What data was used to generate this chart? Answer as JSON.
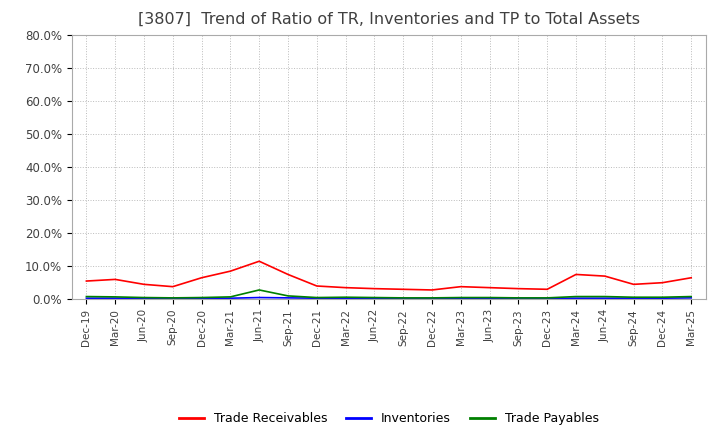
{
  "title": "[3807]  Trend of Ratio of TR, Inventories and TP to Total Assets",
  "title_color": "#404040",
  "title_fontsize": 11.5,
  "ylim": [
    0.0,
    80.0
  ],
  "yticks": [
    0.0,
    10.0,
    20.0,
    30.0,
    40.0,
    50.0,
    60.0,
    70.0,
    80.0
  ],
  "ytick_labels": [
    "0.0%",
    "10.0%",
    "20.0%",
    "30.0%",
    "40.0%",
    "50.0%",
    "60.0%",
    "70.0%",
    "80.0%"
  ],
  "x_labels": [
    "Dec-19",
    "Mar-20",
    "Jun-20",
    "Sep-20",
    "Dec-20",
    "Mar-21",
    "Jun-21",
    "Sep-21",
    "Dec-21",
    "Mar-22",
    "Jun-22",
    "Sep-22",
    "Dec-22",
    "Mar-23",
    "Jun-23",
    "Sep-23",
    "Dec-23",
    "Mar-24",
    "Jun-24",
    "Sep-24",
    "Dec-24",
    "Mar-25"
  ],
  "trade_receivables": [
    5.5,
    6.0,
    4.5,
    3.8,
    6.5,
    8.5,
    11.5,
    7.5,
    4.0,
    3.5,
    3.2,
    3.0,
    2.8,
    3.8,
    3.5,
    3.2,
    3.0,
    7.5,
    7.0,
    4.5,
    5.0,
    6.5
  ],
  "inventories": [
    0.3,
    0.3,
    0.2,
    0.2,
    0.2,
    0.3,
    0.5,
    0.4,
    0.3,
    0.3,
    0.2,
    0.2,
    0.2,
    0.3,
    0.3,
    0.3,
    0.2,
    0.3,
    0.3,
    0.3,
    0.3,
    0.4
  ],
  "trade_payables": [
    0.8,
    0.7,
    0.5,
    0.4,
    0.5,
    0.7,
    2.8,
    1.0,
    0.5,
    0.6,
    0.5,
    0.4,
    0.4,
    0.5,
    0.5,
    0.4,
    0.4,
    0.8,
    0.8,
    0.6,
    0.6,
    0.8
  ],
  "tr_color": "#ff0000",
  "inv_color": "#0000ff",
  "tp_color": "#008000",
  "grid_color": "#aaaaaa",
  "grid_linestyle": ":",
  "background_color": "#ffffff",
  "legend_labels": [
    "Trade Receivables",
    "Inventories",
    "Trade Payables"
  ],
  "plot_area_bg": "#ffffff"
}
